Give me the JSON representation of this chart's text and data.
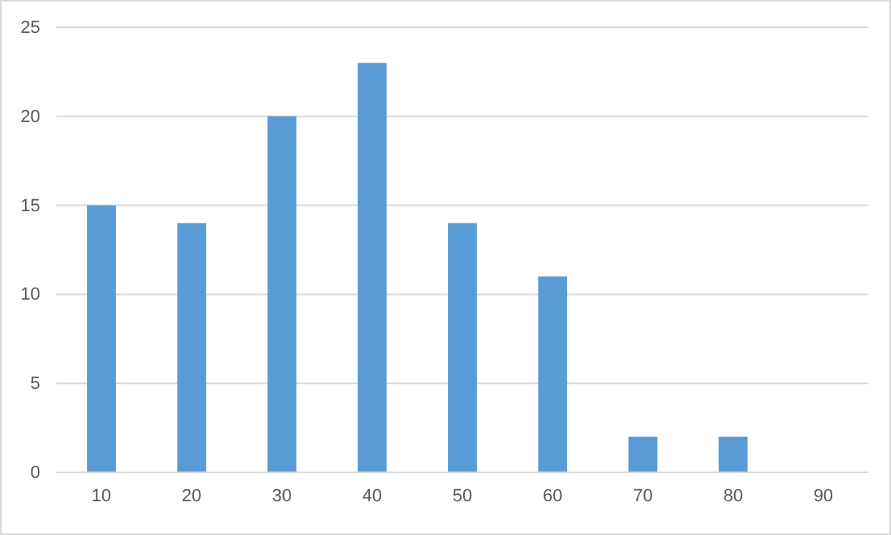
{
  "chart_data": {
    "type": "bar",
    "categories": [
      "10",
      "20",
      "30",
      "40",
      "50",
      "60",
      "70",
      "80",
      "90"
    ],
    "values": [
      15,
      14,
      20,
      23,
      14,
      11,
      2,
      2,
      0
    ],
    "color": "#5b9bd5",
    "ylim": [
      0,
      25
    ],
    "yticks": [
      0,
      5,
      10,
      15,
      20,
      25
    ],
    "grid": "y"
  }
}
